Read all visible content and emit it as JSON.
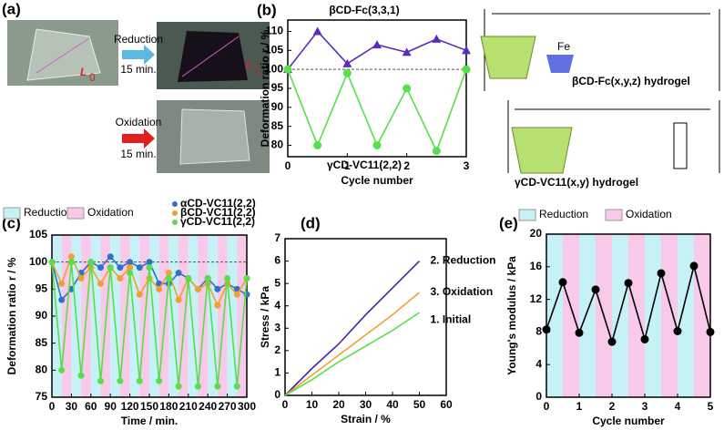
{
  "panel_a": {
    "label": "(a)",
    "reduction": "Reduction",
    "time1": "15 min.",
    "oxidation": "Oxidation",
    "time2": "15 min.",
    "l0": "L",
    "l0_sub": "0",
    "l1": "L",
    "l1_sub": "1"
  },
  "structures": {
    "label1": "βCD-Fc(x,y,z) hydrogel",
    "label2": "γCD-VC11(x,y) hydrogel",
    "fe": "Fe"
  },
  "chart_data": [
    {
      "type": "line",
      "panel": "(b)",
      "xlabel": "Cycle number",
      "ylabel": "Deformation ratio r / %",
      "x": [
        0,
        0.5,
        1,
        1.5,
        2,
        2.5,
        3
      ],
      "xlim": [
        0,
        3
      ],
      "xticks": [
        0,
        1,
        2,
        3
      ],
      "ylim": [
        77,
        113
      ],
      "yticks": [
        80,
        85,
        90,
        95,
        100,
        105,
        110
      ],
      "reference_line": 100,
      "series": [
        {
          "name": "βCD-Fc(3,3,1)",
          "color": "#5b2dbf",
          "marker": "triangle",
          "values": [
            100,
            110,
            101.5,
            106.5,
            104.5,
            108,
            105
          ]
        },
        {
          "name": "γCD-VC11(2,2)",
          "color": "#55e04a",
          "marker": "circle",
          "values": [
            100,
            80,
            99,
            80,
            95,
            78.5,
            100
          ]
        }
      ]
    },
    {
      "type": "line",
      "panel": "(c)",
      "xlabel": "Time / min.",
      "ylabel": "Deformation ratio r / %",
      "x": [
        0,
        15,
        30,
        45,
        60,
        75,
        90,
        105,
        120,
        135,
        150,
        165,
        180,
        195,
        210,
        225,
        240,
        255,
        270,
        285,
        300
      ],
      "xlim": [
        0,
        300
      ],
      "xticks": [
        0,
        30,
        60,
        90,
        120,
        150,
        180,
        210,
        240,
        270,
        300
      ],
      "ylim": [
        75,
        105
      ],
      "yticks": [
        75,
        80,
        85,
        90,
        95,
        100,
        105
      ],
      "reference_line": 100,
      "shading_legend": [
        {
          "name": "Reduction",
          "color": "#c6f1f6"
        },
        {
          "name": "Oxidation",
          "color": "#f9c9ea"
        }
      ],
      "series": [
        {
          "name": "αCD-VC11(2,2)",
          "color": "#2f72c8",
          "marker": "circle",
          "values": [
            100,
            93,
            95,
            98,
            100,
            99,
            101,
            99,
            100,
            99,
            100,
            96,
            96,
            98,
            97,
            95,
            97,
            95,
            96,
            95,
            94
          ]
        },
        {
          "name": "βCD-VC11(2,2)",
          "color": "#f0a030",
          "marker": "circle",
          "values": [
            100,
            96,
            101,
            97,
            99,
            96,
            99,
            97,
            99,
            94,
            97,
            95,
            98,
            93,
            97,
            95,
            96,
            92,
            96,
            94,
            97
          ]
        },
        {
          "name": "γCD-VC11(2,2)",
          "color": "#55e04a",
          "marker": "circle",
          "values": [
            100,
            80,
            100,
            79,
            100,
            78,
            99,
            78,
            98,
            78,
            99,
            78,
            97,
            77,
            97,
            77,
            97,
            77,
            97,
            77,
            97
          ]
        }
      ]
    },
    {
      "type": "line",
      "panel": "(d)",
      "xlabel": "Strain / %",
      "ylabel": "Stress / kPa",
      "x": [
        0,
        10,
        20,
        30,
        40,
        50
      ],
      "xlim": [
        0,
        60
      ],
      "xticks": [
        0,
        10,
        20,
        30,
        40,
        50,
        60
      ],
      "ylim": [
        0,
        7
      ],
      "yticks": [
        0,
        1,
        2,
        3,
        4,
        5,
        6,
        7
      ],
      "series": [
        {
          "name": "2. Reduction",
          "color": "#4b22b0",
          "values": [
            0,
            1.2,
            2.3,
            3.6,
            4.8,
            6
          ]
        },
        {
          "name": "3. Oxidation",
          "color": "#f0a030",
          "values": [
            0,
            0.9,
            1.8,
            2.7,
            3.6,
            4.6
          ]
        },
        {
          "name": "1. Initial",
          "color": "#55e04a",
          "values": [
            0,
            0.7,
            1.5,
            2.2,
            2.9,
            3.7
          ]
        }
      ]
    },
    {
      "type": "line",
      "panel": "(e)",
      "xlabel": "Cycle number",
      "ylabel": "Young's modulus / kPa",
      "x": [
        0,
        0.5,
        1,
        1.5,
        2,
        2.5,
        3,
        3.5,
        4,
        4.5,
        5
      ],
      "xlim": [
        0,
        5
      ],
      "xticks": [
        0,
        1,
        2,
        3,
        4,
        5
      ],
      "ylim": [
        0,
        20
      ],
      "yticks": [
        0,
        4,
        8,
        12,
        16,
        20
      ],
      "shading_legend": [
        {
          "name": "Reduction",
          "color": "#c6f1f6"
        },
        {
          "name": "Oxidation",
          "color": "#f9c9ea"
        }
      ],
      "series": [
        {
          "color": "#000000",
          "marker": "circle",
          "values": [
            8.3,
            14.1,
            7.9,
            13.2,
            6.8,
            14,
            7.1,
            15.2,
            8.1,
            16.1,
            8
          ]
        }
      ]
    }
  ]
}
